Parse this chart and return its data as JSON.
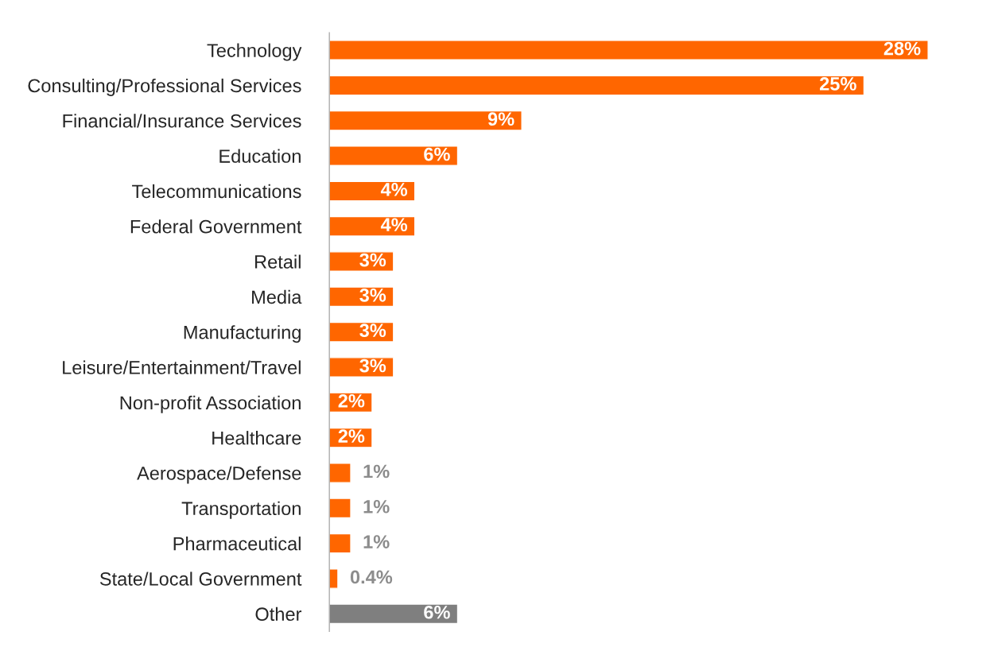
{
  "chart_data": {
    "type": "bar",
    "orientation": "horizontal",
    "categories": [
      "Technology",
      "Consulting/Professional Services",
      "Financial/Insurance Services",
      "Education",
      "Telecommunications",
      "Federal Government",
      "Retail",
      "Media",
      "Manufacturing",
      "Leisure/Entertainment/Travel",
      "Non-profit Association",
      "Healthcare",
      "Aerospace/Defense",
      "Transportation",
      "Pharmaceutical",
      "State/Local Government",
      "Other"
    ],
    "values": [
      28,
      25,
      9,
      6,
      4,
      4,
      3,
      3,
      3,
      3,
      2,
      2,
      1,
      1,
      1,
      0.4,
      6
    ],
    "colors": [
      "#ff6600",
      "#ff6600",
      "#ff6600",
      "#ff6600",
      "#ff6600",
      "#ff6600",
      "#ff6600",
      "#ff6600",
      "#ff6600",
      "#ff6600",
      "#ff6600",
      "#ff6600",
      "#ff6600",
      "#ff6600",
      "#ff6600",
      "#ff6600",
      "#7f7f7f"
    ],
    "value_labels": [
      "28%",
      "25%",
      "9%",
      "6%",
      "4%",
      "4%",
      "3%",
      "3%",
      "3%",
      "3%",
      "2%",
      "2%",
      "1%",
      "1%",
      "1%",
      "0.4%",
      "6%"
    ],
    "grid": false,
    "legend": false,
    "tick_labels": "y"
  }
}
